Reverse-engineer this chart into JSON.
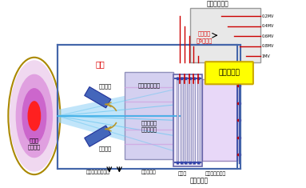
{
  "bg_color": "#ffffff",
  "labels": {
    "title_hv": "高電圧伝送管",
    "insulating_gas": "絶縁ガス\n（6気圧）",
    "bushing": "ブッシング",
    "vacuum": "真空",
    "neg_ion_beam": "負イオンビーム",
    "ion_to_atom": "イオンから\n原子へ変換",
    "pos_ion": "正イオン",
    "neg_ion": "負イオン",
    "plasma": "核融合\nプラズマ",
    "residual_dump": "残留イオンダンプ",
    "neutralizer_cell": "中性化セル",
    "accelerator": "加速器",
    "neg_ion_source_part": "負イオン生成部",
    "neg_ion_source": "負イオン源",
    "voltage_labels": [
      "0.2MV",
      "0.4MV",
      "0.6MV",
      "0.8MV",
      "1MV"
    ]
  },
  "colors": {
    "plasma_rings": [
      "#f0d8f0",
      "#e0a0e0",
      "#cc66cc",
      "#ff2020"
    ],
    "plasma_border": "#aa8800",
    "beam_fill": "#a0d8f8",
    "beam_edge": "#60b8e8",
    "neg_beam_fill": "#e0c8f0",
    "deflector": "#4466bb",
    "deflector_edge": "#223399",
    "arrow_gold": "#b8962a",
    "vacuum_border": "#4466aa",
    "hv_box_fill": "#e8e8e8",
    "hv_box_border": "#999999",
    "bushing_fill": "#ffff00",
    "bushing_border": "#ccaa00",
    "neutralizer_fill": "#d4d0f0",
    "neutralizer_border": "#9090bb",
    "accel_fill": "#ece8f8",
    "accel_border": "#6666aa",
    "accel_grid_fill": "#d8d4e8",
    "accel_grid_border": "#8888bb",
    "neg_src_fill": "#e8d8f8",
    "neg_src_border": "#9988bb",
    "cable_red": "#cc0000",
    "cable_blue": "#4455aa",
    "label_red": "#dd0000",
    "label_black": "#111111"
  }
}
